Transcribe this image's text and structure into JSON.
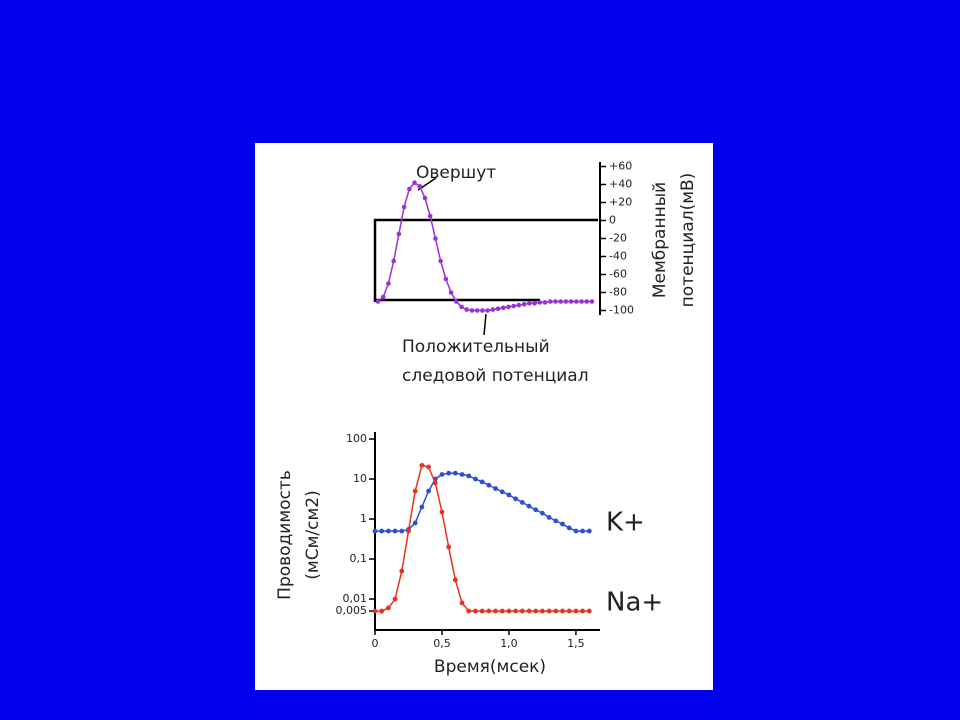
{
  "chart_data": [
    {
      "type": "line",
      "y_label_lines": [
        "Мембранный",
        "потенциал(мВ)"
      ],
      "annotations": {
        "peak": "Овершут",
        "trace": [
          "Положительный",
          "следовой потенциал"
        ]
      },
      "values": [
        -90,
        -85,
        -70,
        -45,
        -15,
        15,
        35,
        42,
        38,
        25,
        5,
        -20,
        -45,
        -65,
        -80,
        -90,
        -96,
        -99,
        -100,
        -100,
        -100,
        -100,
        -99,
        -98,
        -97,
        -96,
        -95,
        -94,
        -93,
        -92,
        -92,
        -91,
        -91,
        -90,
        -90,
        -90,
        -90,
        -90,
        -90,
        -90,
        -90,
        -90
      ],
      "color": "#9b30d9",
      "ylim": [
        -105,
        65
      ],
      "yticks": [
        {
          "value": 60,
          "label": "+60"
        },
        {
          "value": 40,
          "label": "+40"
        },
        {
          "value": 20,
          "label": "+20"
        },
        0,
        -20,
        -40,
        -60,
        -80,
        -100
      ]
    },
    {
      "type": "line",
      "log_scale_y": true,
      "y_label_lines": [
        "Проводимость",
        "(мСм/см2)"
      ],
      "x_label": "Время(мсек)",
      "x": [
        0,
        0.05,
        0.1,
        0.15,
        0.2,
        0.25,
        0.3,
        0.35,
        0.4,
        0.45,
        0.5,
        0.55,
        0.6,
        0.65,
        0.7,
        0.75,
        0.8,
        0.85,
        0.9,
        0.95,
        1.0,
        1.05,
        1.1,
        1.15,
        1.2,
        1.25,
        1.3,
        1.35,
        1.4,
        1.45,
        1.5,
        1.55,
        1.6
      ],
      "series": [
        {
          "name": "K+",
          "color": "#2b4fd6",
          "values": [
            0.5,
            0.5,
            0.5,
            0.5,
            0.5,
            0.55,
            0.8,
            2,
            5,
            10,
            13,
            14,
            14,
            13,
            12,
            10,
            8.5,
            7,
            5.8,
            4.8,
            4,
            3.2,
            2.6,
            2.1,
            1.7,
            1.4,
            1.1,
            0.9,
            0.75,
            0.6,
            0.5,
            0.5,
            0.5
          ]
        },
        {
          "name": "Na+",
          "color": "#e8321e",
          "values": [
            0.005,
            0.005,
            0.006,
            0.01,
            0.05,
            0.5,
            5,
            22,
            20,
            8,
            1.5,
            0.2,
            0.03,
            0.008,
            0.005,
            0.005,
            0.005,
            0.005,
            0.005,
            0.005,
            0.005,
            0.005,
            0.005,
            0.005,
            0.005,
            0.005,
            0.005,
            0.005,
            0.005,
            0.005,
            0.005,
            0.005,
            0.005
          ]
        }
      ],
      "xlim": [
        0,
        1.65
      ],
      "xticks": [
        0,
        {
          "value": 0.5,
          "label": "0,5"
        },
        {
          "value": 1.0,
          "label": "1,0"
        },
        {
          "value": 1.5,
          "label": "1,5"
        }
      ],
      "ylim": [
        0.002,
        150
      ],
      "yticks": [
        100,
        10,
        1,
        {
          "value": 0.1,
          "label": "0,1"
        },
        {
          "value": 0.01,
          "label": "0,01"
        },
        {
          "value": 0.005,
          "label": "0,005"
        }
      ]
    }
  ]
}
